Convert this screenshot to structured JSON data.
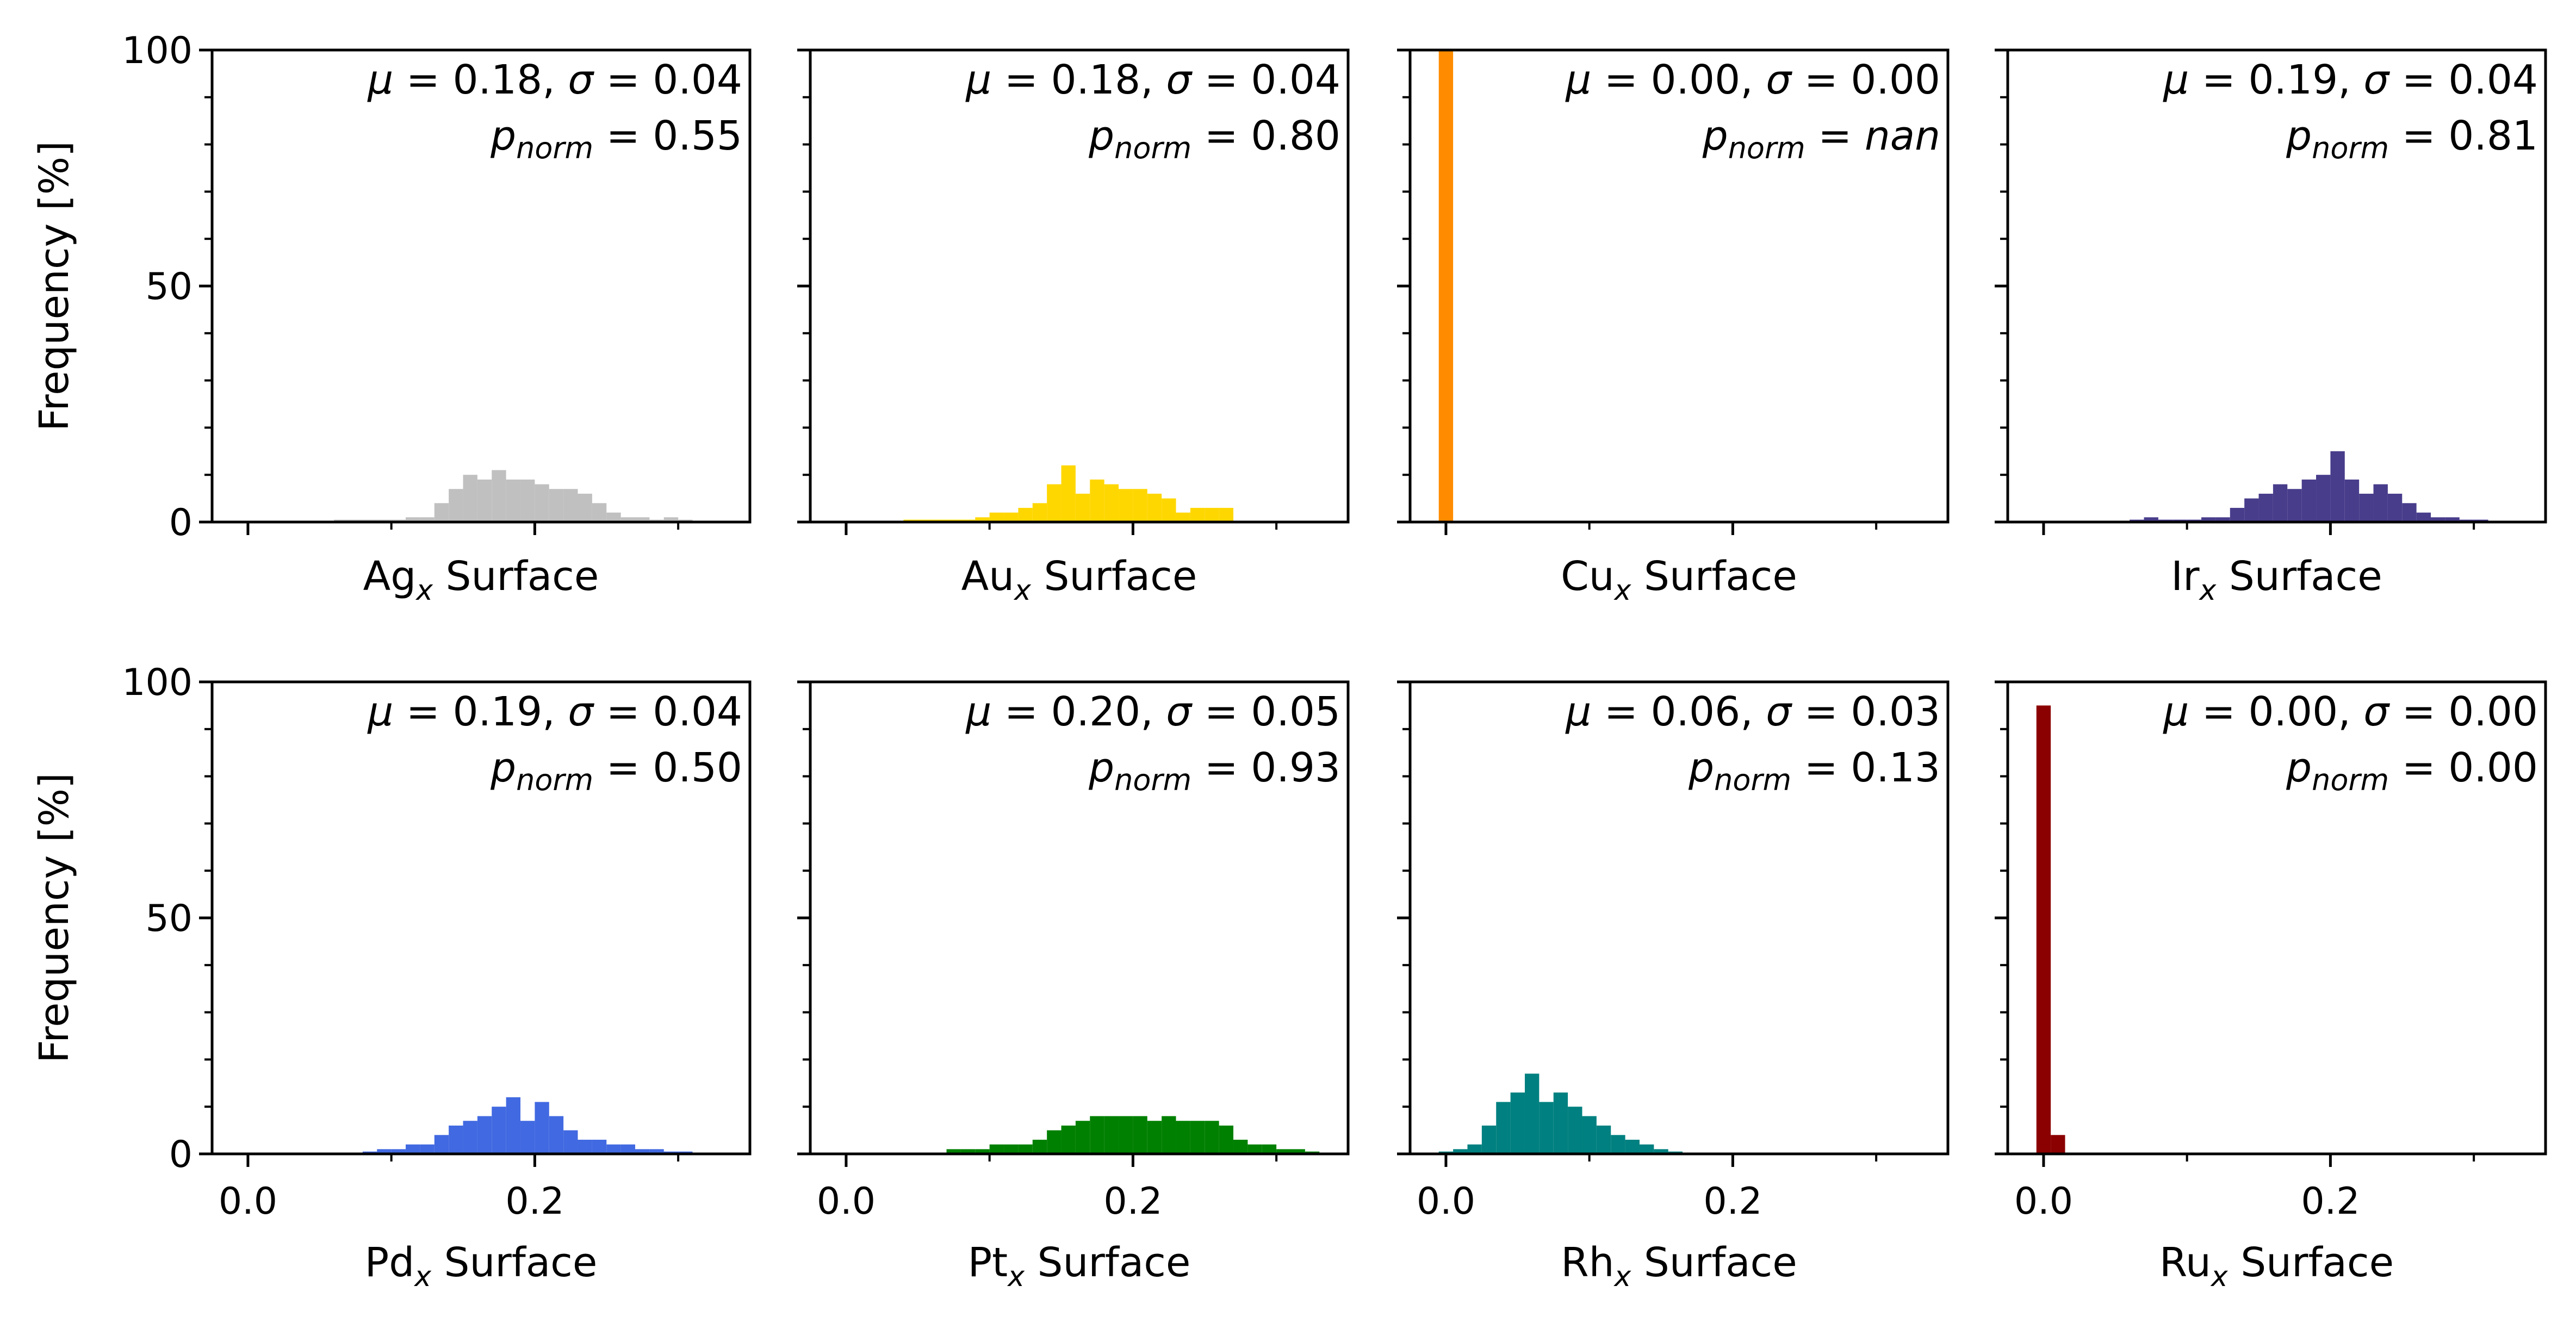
{
  "chart_data": [
    {
      "type": "bar",
      "element": "Ag",
      "xlabel_main": "Ag",
      "xlabel_sub": "x",
      "xlabel_rest": " Surface",
      "ylabel": "Frequency [%]",
      "xlim": [
        -0.025,
        0.35
      ],
      "ylim": [
        0,
        100
      ],
      "yticks": [
        "0",
        "50",
        "100"
      ],
      "xticks": [
        "0.0",
        "0.2"
      ],
      "color": "#c0c0c0",
      "bin_edges": [
        0.06,
        0.07,
        0.08,
        0.09,
        0.1,
        0.11,
        0.12,
        0.13,
        0.14,
        0.15,
        0.16,
        0.17,
        0.18,
        0.19,
        0.2,
        0.21,
        0.22,
        0.23,
        0.24,
        0.25,
        0.26,
        0.27,
        0.28,
        0.29,
        0.3,
        0.31
      ],
      "values": [
        0.5,
        0.5,
        0.5,
        0.5,
        0.5,
        1,
        1,
        4,
        7,
        10,
        9,
        11,
        9,
        9,
        8,
        7,
        7,
        6,
        4,
        2,
        1,
        1,
        0.5,
        1,
        0.5
      ],
      "stats": {
        "mu": "0.18",
        "sigma": "0.04",
        "p_norm": "0.55"
      }
    },
    {
      "type": "bar",
      "element": "Au",
      "xlabel_main": "Au",
      "xlabel_sub": "x",
      "xlabel_rest": " Surface",
      "ylabel": "",
      "xlim": [
        -0.025,
        0.35
      ],
      "ylim": [
        0,
        100
      ],
      "yticks": [
        "0",
        "50",
        "100"
      ],
      "xticks": [
        "0.0",
        "0.2"
      ],
      "color": "#ffd700",
      "bin_edges": [
        0.04,
        0.05,
        0.06,
        0.07,
        0.08,
        0.09,
        0.1,
        0.11,
        0.12,
        0.13,
        0.14,
        0.15,
        0.16,
        0.17,
        0.18,
        0.19,
        0.2,
        0.21,
        0.22,
        0.23,
        0.24,
        0.25,
        0.26,
        0.27
      ],
      "values": [
        0.5,
        0.5,
        0.5,
        0.5,
        0.5,
        1,
        2,
        2,
        3,
        4,
        8,
        12,
        6,
        9,
        8,
        7,
        7,
        6,
        5,
        2,
        3,
        3,
        3
      ],
      "stats": {
        "mu": "0.18",
        "sigma": "0.04",
        "p_norm": "0.80"
      }
    },
    {
      "type": "bar",
      "element": "Cu",
      "xlabel_main": "Cu",
      "xlabel_sub": "x",
      "xlabel_rest": " Surface",
      "ylabel": "",
      "xlim": [
        -0.025,
        0.35
      ],
      "ylim": [
        0,
        100
      ],
      "yticks": [
        "0",
        "50",
        "100"
      ],
      "xticks": [
        "0.0",
        "0.2"
      ],
      "color": "#ff8c00",
      "bin_edges": [
        -0.005,
        0.005
      ],
      "values": [
        100
      ],
      "stats": {
        "mu": "0.00",
        "sigma": "0.00",
        "p_norm": "nan"
      }
    },
    {
      "type": "bar",
      "element": "Ir",
      "xlabel_main": "Ir",
      "xlabel_sub": "x",
      "xlabel_rest": " Surface",
      "ylabel": "",
      "xlim": [
        -0.025,
        0.35
      ],
      "ylim": [
        0,
        100
      ],
      "yticks": [
        "0",
        "50",
        "100"
      ],
      "xticks": [
        "0.0",
        "0.2"
      ],
      "color": "#483d8b",
      "bin_edges": [
        0.06,
        0.07,
        0.08,
        0.09,
        0.1,
        0.11,
        0.12,
        0.13,
        0.14,
        0.15,
        0.16,
        0.17,
        0.18,
        0.19,
        0.2,
        0.21,
        0.22,
        0.23,
        0.24,
        0.25,
        0.26,
        0.27,
        0.28,
        0.29,
        0.3,
        0.31
      ],
      "values": [
        0.5,
        1,
        0.5,
        0.5,
        0.5,
        1,
        1,
        3,
        5,
        6,
        8,
        7,
        9,
        10,
        15,
        9,
        6,
        8,
        6,
        4,
        2,
        1,
        1,
        0.5,
        0.5
      ],
      "stats": {
        "mu": "0.19",
        "sigma": "0.04",
        "p_norm": "0.81"
      }
    },
    {
      "type": "bar",
      "element": "Pd",
      "xlabel_main": "Pd",
      "xlabel_sub": "x",
      "xlabel_rest": " Surface",
      "ylabel": "Frequency [%]",
      "xlim": [
        -0.025,
        0.35
      ],
      "ylim": [
        0,
        100
      ],
      "yticks": [
        "0",
        "50",
        "100"
      ],
      "xticks": [
        "0.0",
        "0.2"
      ],
      "color": "#4169e1",
      "bin_edges": [
        0.08,
        0.09,
        0.1,
        0.11,
        0.12,
        0.13,
        0.14,
        0.15,
        0.16,
        0.17,
        0.18,
        0.19,
        0.2,
        0.21,
        0.22,
        0.23,
        0.24,
        0.25,
        0.26,
        0.27,
        0.28,
        0.29,
        0.3,
        0.31
      ],
      "values": [
        0.5,
        1,
        1,
        2,
        2,
        4,
        6,
        7,
        8,
        10,
        12,
        7,
        11,
        8,
        5,
        3,
        3,
        2,
        2,
        1,
        1,
        0.5,
        0.5
      ],
      "stats": {
        "mu": "0.19",
        "sigma": "0.04",
        "p_norm": "0.50"
      }
    },
    {
      "type": "bar",
      "element": "Pt",
      "xlabel_main": "Pt",
      "xlabel_sub": "x",
      "xlabel_rest": " Surface",
      "ylabel": "",
      "xlim": [
        -0.025,
        0.35
      ],
      "ylim": [
        0,
        100
      ],
      "yticks": [
        "0",
        "50",
        "100"
      ],
      "xticks": [
        "0.0",
        "0.2"
      ],
      "color": "#008000",
      "bin_edges": [
        0.07,
        0.08,
        0.09,
        0.1,
        0.11,
        0.12,
        0.13,
        0.14,
        0.15,
        0.16,
        0.17,
        0.18,
        0.19,
        0.2,
        0.21,
        0.22,
        0.23,
        0.24,
        0.25,
        0.26,
        0.27,
        0.28,
        0.29,
        0.3,
        0.31,
        0.32,
        0.33
      ],
      "values": [
        1,
        1,
        1,
        2,
        2,
        2,
        3,
        5,
        6,
        7,
        8,
        8,
        8,
        8,
        7,
        8,
        7,
        7,
        7,
        6,
        3,
        2,
        2,
        1,
        1,
        0.5
      ],
      "stats": {
        "mu": "0.20",
        "sigma": "0.05",
        "p_norm": "0.93"
      }
    },
    {
      "type": "bar",
      "element": "Rh",
      "xlabel_main": "Rh",
      "xlabel_sub": "x",
      "xlabel_rest": " Surface",
      "ylabel": "",
      "xlim": [
        -0.025,
        0.35
      ],
      "ylim": [
        0,
        100
      ],
      "yticks": [
        "0",
        "50",
        "100"
      ],
      "xticks": [
        "0.0",
        "0.2"
      ],
      "color": "#008080",
      "bin_edges": [
        -0.005,
        0.005,
        0.015,
        0.025,
        0.035,
        0.045,
        0.055,
        0.065,
        0.075,
        0.085,
        0.095,
        0.105,
        0.115,
        0.125,
        0.135,
        0.145,
        0.155,
        0.165
      ],
      "values": [
        0.5,
        1,
        2,
        6,
        11,
        13,
        17,
        11,
        13,
        10,
        8,
        6,
        4,
        3,
        2,
        1,
        0.5
      ],
      "stats": {
        "mu": "0.06",
        "sigma": "0.03",
        "p_norm": "0.13"
      }
    },
    {
      "type": "bar",
      "element": "Ru",
      "xlabel_main": "Ru",
      "xlabel_sub": "x",
      "xlabel_rest": " Surface",
      "ylabel": "",
      "xlim": [
        -0.025,
        0.35
      ],
      "ylim": [
        0,
        100
      ],
      "yticks": [
        "0",
        "50",
        "100"
      ],
      "xticks": [
        "0.0",
        "0.2"
      ],
      "color": "#8b0000",
      "bin_edges": [
        -0.005,
        0.005,
        0.015
      ],
      "values": [
        95,
        4
      ],
      "stats": {
        "mu": "0.00",
        "sigma": "0.00",
        "p_norm": "0.00"
      }
    }
  ]
}
